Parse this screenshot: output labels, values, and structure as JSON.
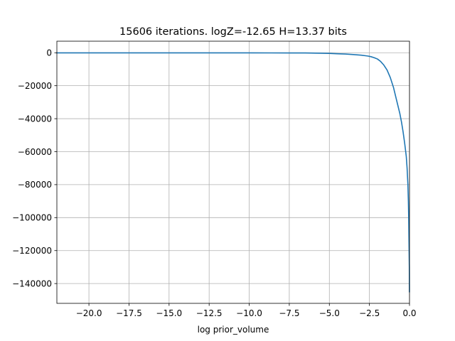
{
  "chart_data": {
    "type": "line",
    "title": "15606 iterations. logZ=-12.65 H=13.37 bits",
    "xlabel": "log prior_volume",
    "ylabel": "",
    "xlim": [
      -22.0,
      0.0
    ],
    "ylim": [
      -152000,
      7000
    ],
    "grid": true,
    "x_ticks": [
      -20.0,
      -17.5,
      -15.0,
      -12.5,
      -10.0,
      -7.5,
      -5.0,
      -2.5,
      0.0
    ],
    "x_tick_labels": [
      "−20.0",
      "−17.5",
      "−15.0",
      "−12.5",
      "−10.0",
      "−7.5",
      "−5.0",
      "−2.5",
      "0.0"
    ],
    "y_ticks": [
      0,
      -20000,
      -40000,
      -60000,
      -80000,
      -100000,
      -120000,
      -140000
    ],
    "y_tick_labels": [
      "0",
      "−20000",
      "−40000",
      "−60000",
      "−80000",
      "−100000",
      "−120000",
      "−140000"
    ],
    "series": [
      {
        "color": "#1f77b4",
        "x": [
          -22.0,
          -20.0,
          -17.5,
          -15.0,
          -12.5,
          -10.0,
          -7.5,
          -6.5,
          -5.5,
          -5.0,
          -4.5,
          -4.0,
          -3.5,
          -3.0,
          -2.6,
          -2.4,
          -2.2,
          -2.0,
          -1.8,
          -1.6,
          -1.4,
          -1.2,
          -1.0,
          -0.8,
          -0.6,
          -0.5,
          -0.4,
          -0.3,
          -0.2,
          -0.15,
          -0.1,
          -0.07,
          -0.05,
          -0.03,
          -0.01,
          -0.005
        ],
        "y": [
          -100,
          -100,
          -100,
          -100,
          -100,
          -100,
          -120,
          -150,
          -300,
          -400,
          -600,
          -800,
          -1100,
          -1500,
          -2000,
          -2400,
          -3000,
          -3800,
          -5300,
          -7500,
          -10500,
          -15000,
          -21000,
          -29000,
          -37000,
          -42000,
          -48000,
          -55000,
          -63000,
          -70000,
          -80000,
          -90000,
          -100000,
          -115000,
          -130000,
          -145000
        ]
      }
    ]
  }
}
